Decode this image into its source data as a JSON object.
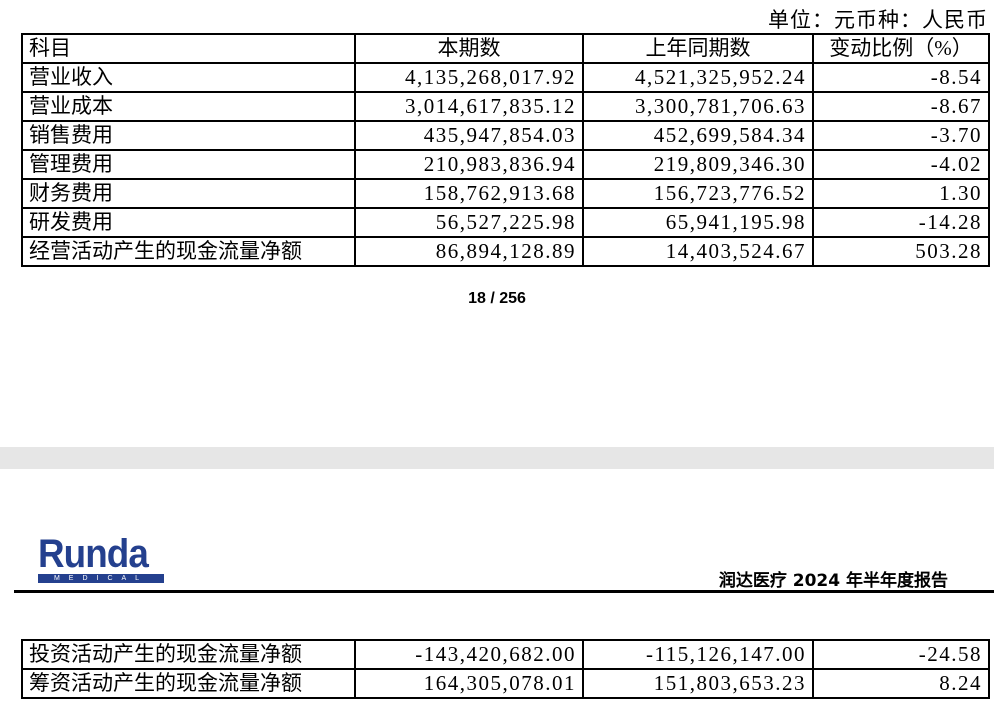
{
  "page1": {
    "unit_note": "单位：元币种：人民币",
    "headers": [
      "科目",
      "本期数",
      "上年同期数",
      "变动比例（%）"
    ],
    "rows": [
      [
        "营业收入",
        "4,135,268,017.92",
        "4,521,325,952.24",
        "-8.54"
      ],
      [
        "营业成本",
        "3,014,617,835.12",
        "3,300,781,706.63",
        "-8.67"
      ],
      [
        "销售费用",
        "435,947,854.03",
        "452,699,584.34",
        "-3.70"
      ],
      [
        "管理费用",
        "210,983,836.94",
        "219,809,346.30",
        "-4.02"
      ],
      [
        "财务费用",
        "158,762,913.68",
        "156,723,776.52",
        "1.30"
      ],
      [
        "研发费用",
        "56,527,225.98",
        "65,941,195.98",
        "-14.28"
      ],
      [
        "经营活动产生的现金流量净额",
        "86,894,128.89",
        "14,403,524.67",
        "503.28"
      ]
    ],
    "page_number": "18 / 256"
  },
  "page2": {
    "logo": {
      "name": "Runda",
      "sub": "MEDICAL",
      "color": "#24408e"
    },
    "report_title": "润达医疗 2024 年半年度报告",
    "rows": [
      [
        "投资活动产生的现金流量净额",
        "-143,420,682.00",
        "-115,126,147.00",
        "-24.58"
      ],
      [
        "筹资活动产生的现金流量净额",
        "164,305,078.01",
        "151,803,653.23",
        "8.24"
      ]
    ]
  }
}
